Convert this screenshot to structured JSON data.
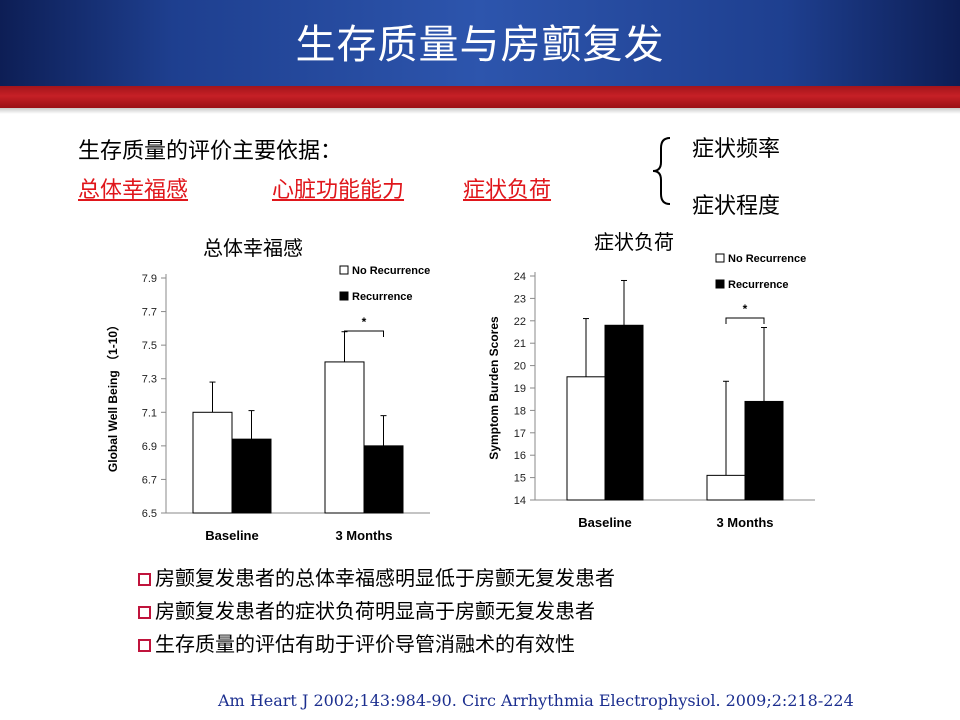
{
  "header": {
    "title": "生存质量与房颤复发"
  },
  "intro": {
    "heading": "生存质量的评价主要依据：",
    "criteria": [
      "总体幸福感",
      "心脏功能能力",
      "症状负荷"
    ]
  },
  "symptom_aspects": [
    "症状频率",
    "症状程度"
  ],
  "colors": {
    "header": "#1e3f8f",
    "red_band": "#c62026",
    "link": "#e0161b",
    "citation": "#1c2f8f",
    "bullet_box": "#c0143c"
  },
  "bullets": [
    "房颤复发患者的总体幸福感明显低于房颤无复发患者",
    "房颤复发患者的症状负荷明显高于房颤无复发患者",
    "生存质量的评估有助于评价导管消融术的有效性"
  ],
  "citation": "Am Heart J 2002;143:984-90.   Circ Arrhythmia Electrophysiol. 2009;2:218-224",
  "chart_data": [
    {
      "type": "bar",
      "title": "总体幸福感",
      "ylabel": "Global Well Being （1-10）",
      "categories": [
        "Baseline",
        "3 Months"
      ],
      "ylim": [
        6.5,
        7.9
      ],
      "yticks": [
        "6.5",
        "6.7",
        "6.9",
        "7.1",
        "7.3",
        "7.5",
        "7.7",
        "7.9"
      ],
      "legend_position": "top-right",
      "series": [
        {
          "name": "No Recurrence",
          "fill": "#ffffff",
          "values": [
            7.1,
            7.4
          ],
          "errors": [
            0.18,
            0.18
          ]
        },
        {
          "name": "Recurrence",
          "fill": "#000000",
          "values": [
            6.94,
            6.9
          ],
          "errors": [
            0.17,
            0.18
          ]
        }
      ],
      "annotation": {
        "text": "*",
        "category": "3 Months"
      }
    },
    {
      "type": "bar",
      "title": "症状负荷",
      "ylabel": "Symptom Burden Scores",
      "categories": [
        "Baseline",
        "3 Months"
      ],
      "ylim": [
        14,
        24
      ],
      "yticks": [
        "14",
        "15",
        "16",
        "17",
        "18",
        "19",
        "20",
        "21",
        "22",
        "23",
        "24"
      ],
      "legend_position": "top-right",
      "series": [
        {
          "name": "No Recurrence",
          "fill": "#ffffff",
          "values": [
            19.5,
            15.1
          ],
          "errors": [
            2.6,
            4.2
          ]
        },
        {
          "name": "Recurrence",
          "fill": "#000000",
          "values": [
            21.8,
            18.4
          ],
          "errors": [
            2.0,
            3.3
          ]
        }
      ],
      "annotation": {
        "text": "*",
        "category": "3 Months"
      }
    }
  ]
}
